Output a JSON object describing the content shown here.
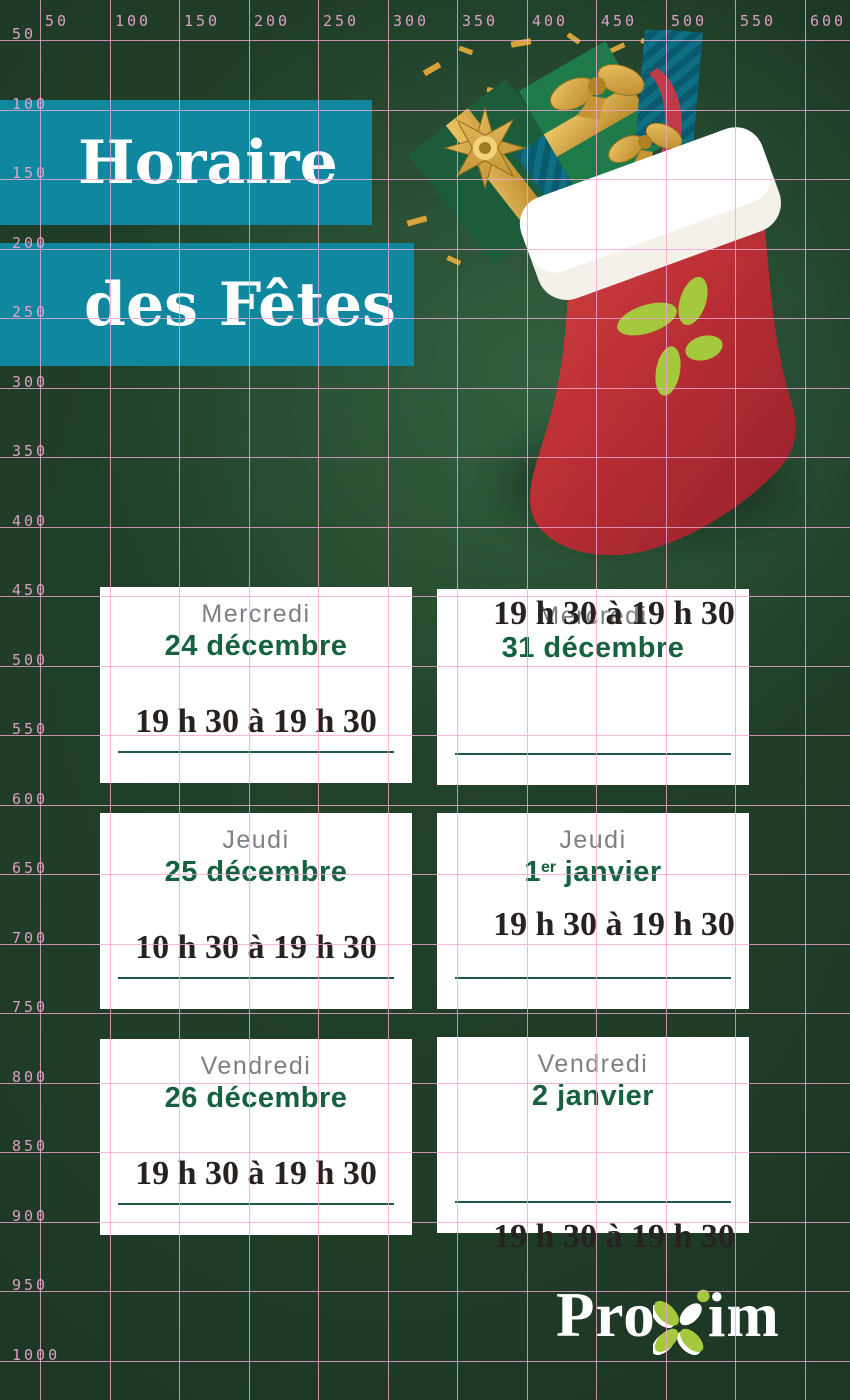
{
  "poster": {
    "title_line1": "Horaire",
    "title_line2": "des Fêtes",
    "cards": [
      {
        "day": "Mercredi",
        "date_pre": "24 décembre",
        "date_sup": "",
        "date_rest": "",
        "hours": "19 h 30 à 19 h 30"
      },
      {
        "day": "Mercredi",
        "date_pre": "31 décembre",
        "date_sup": "",
        "date_rest": "",
        "hours": "19 h 30 à 19 h 30"
      },
      {
        "day": "Jeudi",
        "date_pre": "25 décembre",
        "date_sup": "",
        "date_rest": "",
        "hours": "10 h 30 à 19 h 30"
      },
      {
        "day": "Jeudi",
        "date_pre": "1",
        "date_sup": "er",
        "date_rest": " janvier",
        "hours": "19 h 30 à 19 h 30"
      },
      {
        "day": "Vendredi",
        "date_pre": "26 décembre",
        "date_sup": "",
        "date_rest": "",
        "hours": "19 h 30 à 19 h 30"
      },
      {
        "day": "Vendredi",
        "date_pre": "2 janvier",
        "date_sup": "",
        "date_rest": "",
        "hours": "19 h 30 à 19 h 30"
      }
    ],
    "logo": {
      "text_pre": "Pro",
      "text_post": "im"
    }
  },
  "icons": {
    "stocking": "christmas-stocking-with-gifts-illustration",
    "logo_flower": "proxim-flower-x"
  },
  "grid_overlay": {
    "x_labels": [
      "50",
      "100",
      "150",
      "200",
      "250",
      "300",
      "350",
      "400",
      "450",
      "500",
      "550",
      "600"
    ],
    "y_labels": [
      "50",
      "100",
      "150",
      "200",
      "250",
      "300",
      "350",
      "400",
      "450",
      "500",
      "550",
      "600",
      "650",
      "700",
      "750",
      "800",
      "850",
      "900",
      "950",
      "1000"
    ]
  },
  "colors": {
    "banner_teal": "#0f879e",
    "background_green": "#1e3b27",
    "card_white": "#ffffff",
    "day_gray": "#7d7f82",
    "date_green": "#156140",
    "hours_ink": "#27221f",
    "underline_green": "#1d5c40",
    "grid_pink": "#f3a6d3",
    "proxim_lime": "#a5c93c",
    "stocking_red": "#b72c33",
    "gold": "#d8a33c"
  }
}
